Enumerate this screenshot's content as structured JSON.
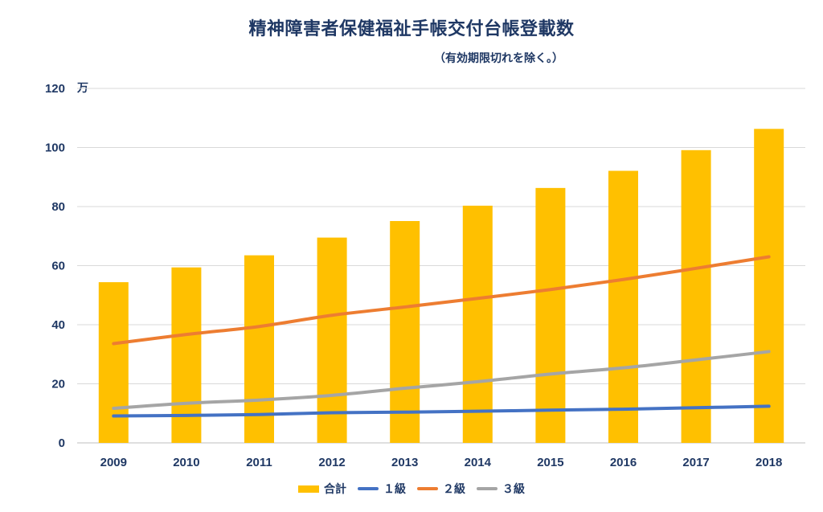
{
  "chart_data": {
    "type": "bar",
    "title": "精神障害者保健福祉手帳交付台帳登載数",
    "subtitle": "（有効期限切れを除く。）",
    "unit_label": "万",
    "categories": [
      "2009",
      "2010",
      "2011",
      "2012",
      "2013",
      "2014",
      "2015",
      "2016",
      "2017",
      "2018"
    ],
    "ylim": [
      0,
      120
    ],
    "yticks": [
      0,
      20,
      40,
      60,
      80,
      100,
      120
    ],
    "grid": true,
    "legend_position": "bottom",
    "bar_series": {
      "name": "合計",
      "color": "#ffc000",
      "values": [
        54.4,
        59.4,
        63.5,
        69.5,
        75.1,
        80.3,
        86.3,
        92.1,
        99.1,
        106.3
      ]
    },
    "line_series": [
      {
        "name": "１級",
        "color": "#4472c4",
        "values": [
          9.1,
          9.3,
          9.6,
          10.2,
          10.4,
          10.7,
          11.1,
          11.4,
          11.9,
          12.4
        ]
      },
      {
        "name": "２級",
        "color": "#ed7d31",
        "values": [
          33.6,
          36.7,
          39.4,
          43.2,
          46.0,
          48.9,
          51.9,
          55.3,
          59.1,
          63.0
        ]
      },
      {
        "name": "３級",
        "color": "#a5a5a5",
        "values": [
          11.7,
          13.4,
          14.5,
          16.1,
          18.5,
          20.7,
          23.3,
          25.4,
          28.1,
          30.9
        ]
      }
    ]
  }
}
